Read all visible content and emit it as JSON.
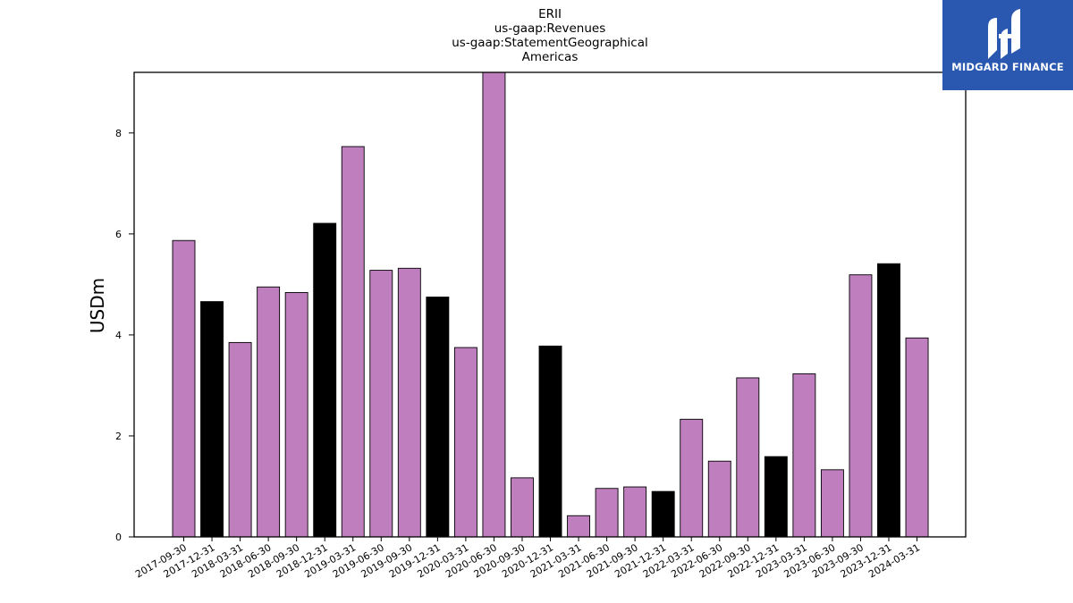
{
  "logo": {
    "text": "MIDGARD FINANCE",
    "icon": "midgard-finance-logo-icon"
  },
  "chart_data": {
    "type": "bar",
    "title_lines": [
      "ERII",
      "us-gaap:Revenues",
      "us-gaap:StatementGeographical",
      "Americas"
    ],
    "ylabel": "USDm",
    "xlabel": "",
    "ylim": [
      0,
      9.2
    ],
    "yticks": [
      0,
      2,
      4,
      6,
      8
    ],
    "grid": false,
    "colors": {
      "quarter": "#bf7fbf",
      "year_end": "#000000",
      "edge": "#000000"
    },
    "categories": [
      "2017-09-30",
      "2017-12-31",
      "2018-03-31",
      "2018-06-30",
      "2018-09-30",
      "2018-12-31",
      "2019-03-31",
      "2019-06-30",
      "2019-09-30",
      "2019-12-31",
      "2020-03-31",
      "2020-06-30",
      "2020-09-30",
      "2020-12-31",
      "2021-03-31",
      "2021-06-30",
      "2021-09-30",
      "2021-12-31",
      "2022-03-31",
      "2022-06-30",
      "2022-09-30",
      "2022-12-31",
      "2023-03-31",
      "2023-06-30",
      "2023-09-30",
      "2023-12-31",
      "2024-03-31"
    ],
    "values": [
      5.87,
      4.66,
      3.85,
      4.95,
      4.84,
      6.21,
      7.73,
      5.28,
      5.32,
      4.75,
      3.75,
      9.25,
      1.17,
      3.78,
      0.42,
      0.96,
      0.99,
      0.9,
      2.33,
      1.5,
      3.15,
      1.59,
      3.23,
      1.33,
      5.19,
      5.41,
      3.94
    ]
  }
}
